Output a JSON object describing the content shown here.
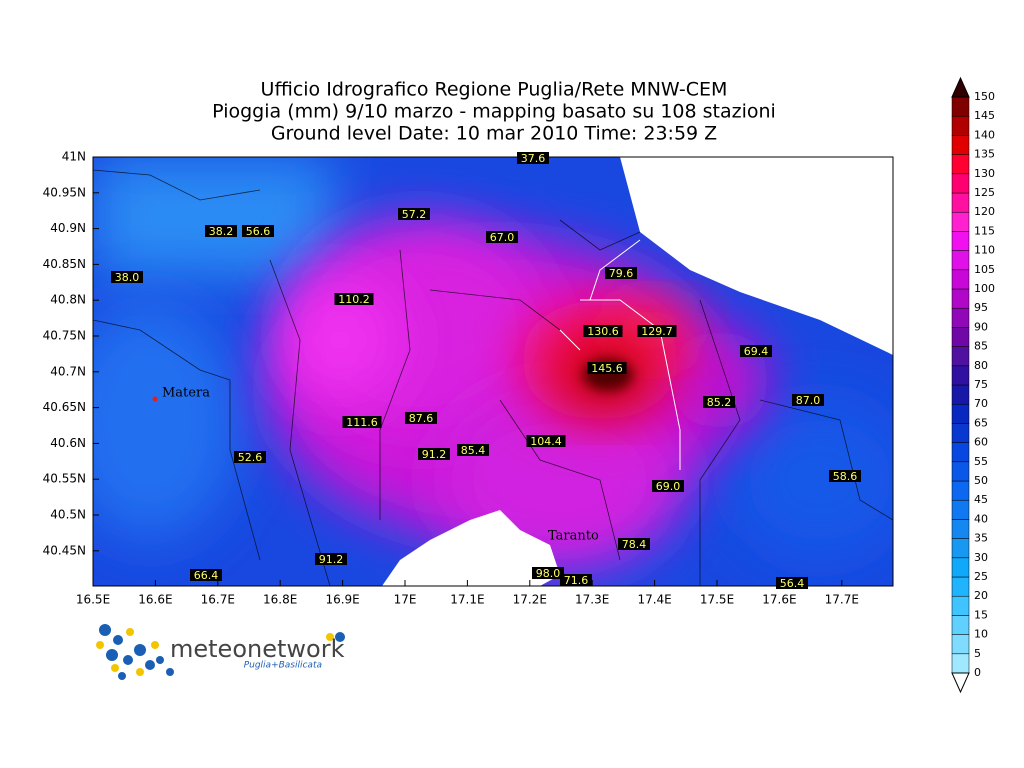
{
  "header": {
    "title_lines": [
      "Ufficio Idrografico Regione Puglia/Rete MNW-CEM",
      "Pioggia (mm) 9/10 marzo - mapping basato su 108 stazioni",
      "Ground level   Date: 10 mar 2010   Time: 23:59 Z"
    ]
  },
  "map": {
    "lon_ticks": [
      "16.5E",
      "16.6E",
      "16.7E",
      "16.8E",
      "16.9E",
      "17E",
      "17.1E",
      "17.2E",
      "17.3E",
      "17.4E",
      "17.5E",
      "17.6E",
      "17.7E"
    ],
    "lat_ticks": [
      "41N",
      "40.95N",
      "40.9N",
      "40.85N",
      "40.8N",
      "40.75N",
      "40.7N",
      "40.65N",
      "40.6N",
      "40.55N",
      "40.5N",
      "40.45N"
    ],
    "cities": [
      "Matera",
      "Taranto"
    ],
    "stations": [
      "37.6",
      "57.2",
      "67.0",
      "38.2",
      "56.6",
      "38.0",
      "79.6",
      "110.2",
      "130.6",
      "129.7",
      "69.4",
      "145.6",
      "85.2",
      "87.0",
      "111.6",
      "87.6",
      "104.4",
      "91.2",
      "85.4",
      "52.6",
      "69.0",
      "58.6",
      "78.4",
      "91.2",
      "66.4",
      "98.0",
      "71.6",
      "56.4"
    ]
  },
  "colorbar": {
    "labels": [
      0,
      5,
      10,
      15,
      20,
      25,
      30,
      35,
      40,
      45,
      50,
      55,
      60,
      65,
      70,
      75,
      80,
      85,
      90,
      95,
      100,
      105,
      110,
      115,
      120,
      125,
      130,
      135,
      140,
      145,
      150
    ],
    "colors": [
      "#a0e8ff",
      "#80dcff",
      "#60d0ff",
      "#40c4ff",
      "#20b4ff",
      "#10a8f8",
      "#1898f0",
      "#1488f0",
      "#1078f0",
      "#0c68f0",
      "#0a58e8",
      "#0848e0",
      "#0838d0",
      "#0828c0",
      "#1818a8",
      "#3010a0",
      "#5010a0",
      "#7008a8",
      "#9008b8",
      "#b008c8",
      "#c808d8",
      "#e010e8",
      "#f010f0",
      "#ff20d0",
      "#ff10a0",
      "#ff0070",
      "#ff0030",
      "#e00000",
      "#b00000",
      "#800000"
    ]
  },
  "logo": {
    "name": "meteonetwork",
    "region": "Puglia+Basilicata"
  }
}
